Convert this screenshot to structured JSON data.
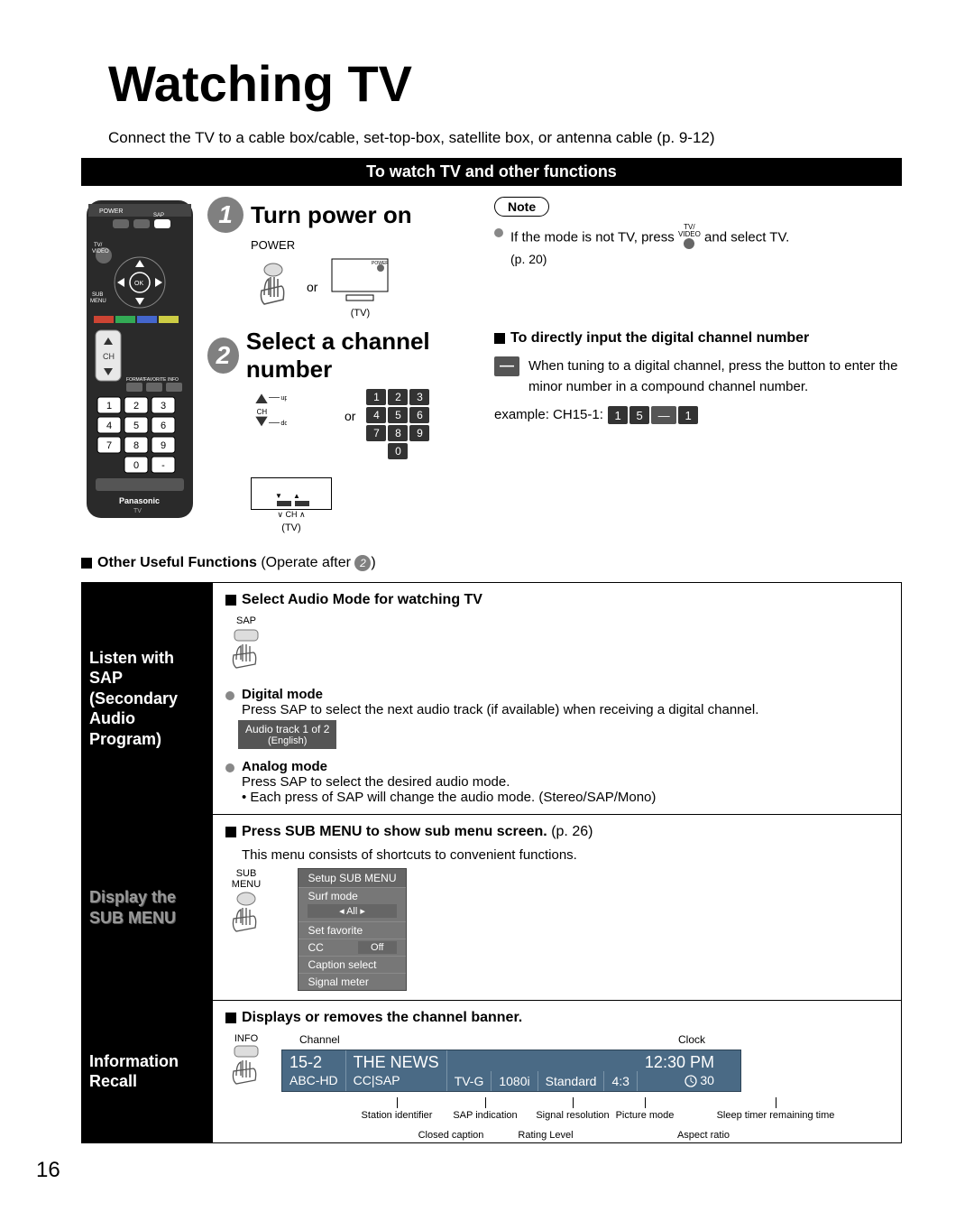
{
  "title": "Watching TV",
  "intro": "Connect the TV to a cable box/cable, set-top-box, satellite box, or antenna cable (p. 9-12)",
  "section_header": "To watch TV and other functions",
  "step1": {
    "num": "1",
    "title": "Turn power on",
    "power_label": "POWER",
    "or": "or",
    "tv_caption": "(TV)",
    "note_label": "Note",
    "note_text": "If the mode is not TV, press",
    "note_text2": "and select TV.",
    "note_btn": "TV/\nVIDEO",
    "note_page": "(p. 20)"
  },
  "step2": {
    "num": "2",
    "title": "Select a channel number",
    "up": "up",
    "down": "down",
    "ch": "CH",
    "or": "or",
    "keys": [
      [
        "1",
        "2",
        "3"
      ],
      [
        "4",
        "5",
        "6"
      ],
      [
        "7",
        "8",
        "9"
      ],
      [
        "0"
      ]
    ],
    "tv_caption": "(TV)",
    "direct_title": "To directly input the digital channel number",
    "direct_body": "When tuning to a digital channel, press the button to enter the minor number in a compound channel number.",
    "example_label": "example:  CH15-1:",
    "example_keys": [
      "1",
      "5",
      "—",
      "1"
    ]
  },
  "other_useful": "Other Useful Functions",
  "other_useful_suffix": " (Operate after ",
  "other_useful_num": "2",
  "other_useful_close": ")",
  "sap": {
    "left": "Listen with SAP (Secondary Audio Program)",
    "heading": "Select Audio Mode for watching TV",
    "btn": "SAP",
    "digital_title": "Digital mode",
    "digital_body": "Press SAP to select the next audio track (if available) when receiving a digital channel.",
    "track_line1": "Audio track 1 of 2",
    "track_line2": "(English)",
    "analog_title": "Analog mode",
    "analog_body1": "Press SAP to select the desired audio mode.",
    "analog_body2": "• Each press of SAP will change the audio mode. (Stereo/SAP/Mono)"
  },
  "submenu": {
    "left": "Display the SUB MENU",
    "heading": "Press SUB MENU to show sub menu screen.",
    "page": " (p. 26)",
    "sub": "This menu consists of shortcuts to convenient functions.",
    "btn": "SUB\nMENU",
    "panel": {
      "title": "Setup SUB MENU",
      "surf": "Surf mode",
      "surf_val": "All",
      "setfav": "Set favorite",
      "cc": "CC",
      "cc_val": "Off",
      "caption": "Caption select",
      "signal": "Signal meter"
    }
  },
  "info": {
    "left": "Information Recall",
    "heading": "Displays or removes the channel banner.",
    "btn": "INFO",
    "top_channel": "Channel",
    "top_clock": "Clock",
    "banner": {
      "ch": "15-2",
      "station": "ABC-HD",
      "prog": "THE NEWS",
      "cc": "CC",
      "sap": "SAP",
      "rating": "TV-G",
      "res": "1080i",
      "pic": "Standard",
      "aspect": "4:3",
      "clock": "12:30 PM",
      "sleep": "30"
    },
    "labels": {
      "station": "Station identifier",
      "sap": "SAP indication",
      "signal": "Signal resolution",
      "picture": "Picture mode",
      "sleep": "Sleep timer remaining time",
      "cc": "Closed caption",
      "rating": "Rating Level",
      "aspect": "Aspect ratio"
    }
  },
  "page_number": "16",
  "colors": {
    "step_circle": "#808080",
    "banner_bg": "#4a6a85",
    "panel_bg": "#777777",
    "key_bg": "#333333"
  }
}
